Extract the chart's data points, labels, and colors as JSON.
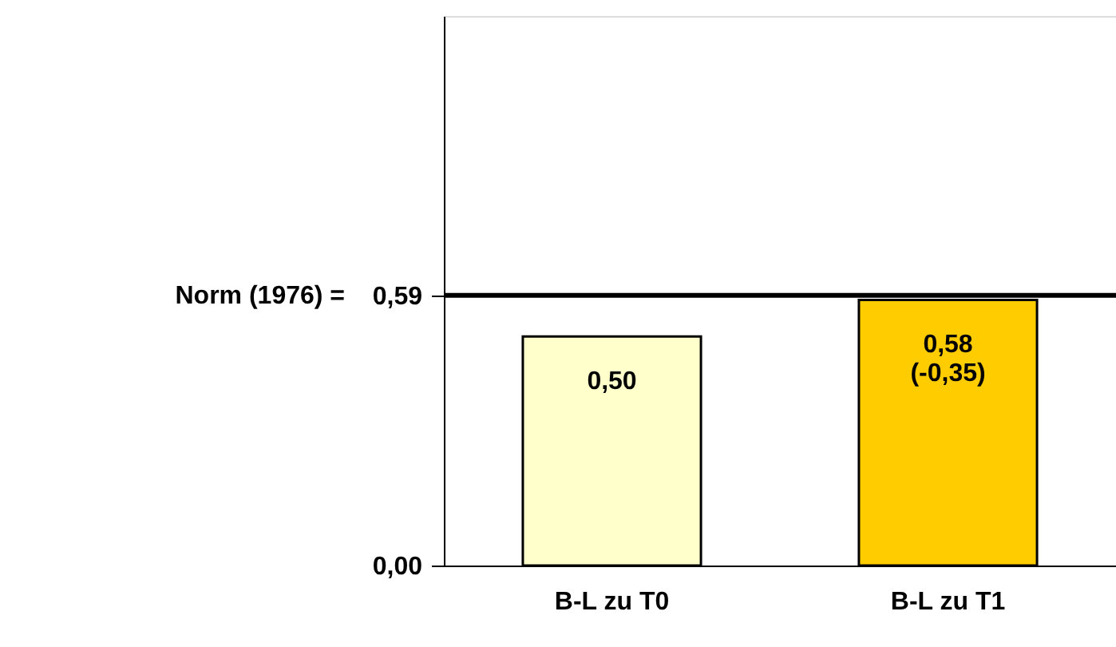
{
  "chart_data": {
    "type": "bar",
    "categories": [
      "B-L zu T0",
      "B-L zu T1"
    ],
    "series": [
      {
        "colors": [
          "#ffffcc",
          "#ffcc00"
        ],
        "values": [
          0.5,
          0.58
        ],
        "value_labels": [
          "0,50",
          "0,58\n(-0,35)"
        ]
      }
    ],
    "ylim": [
      0,
      1.2
    ],
    "yticks": [
      {
        "value": 0,
        "label": "0,00"
      },
      {
        "value": 0.59,
        "label": "0,59"
      }
    ],
    "ref_lines": [
      {
        "axis": "y",
        "value": 0.59,
        "label": "Norm (1976) =",
        "color": "#000000",
        "line_style": "solid"
      }
    ]
  }
}
